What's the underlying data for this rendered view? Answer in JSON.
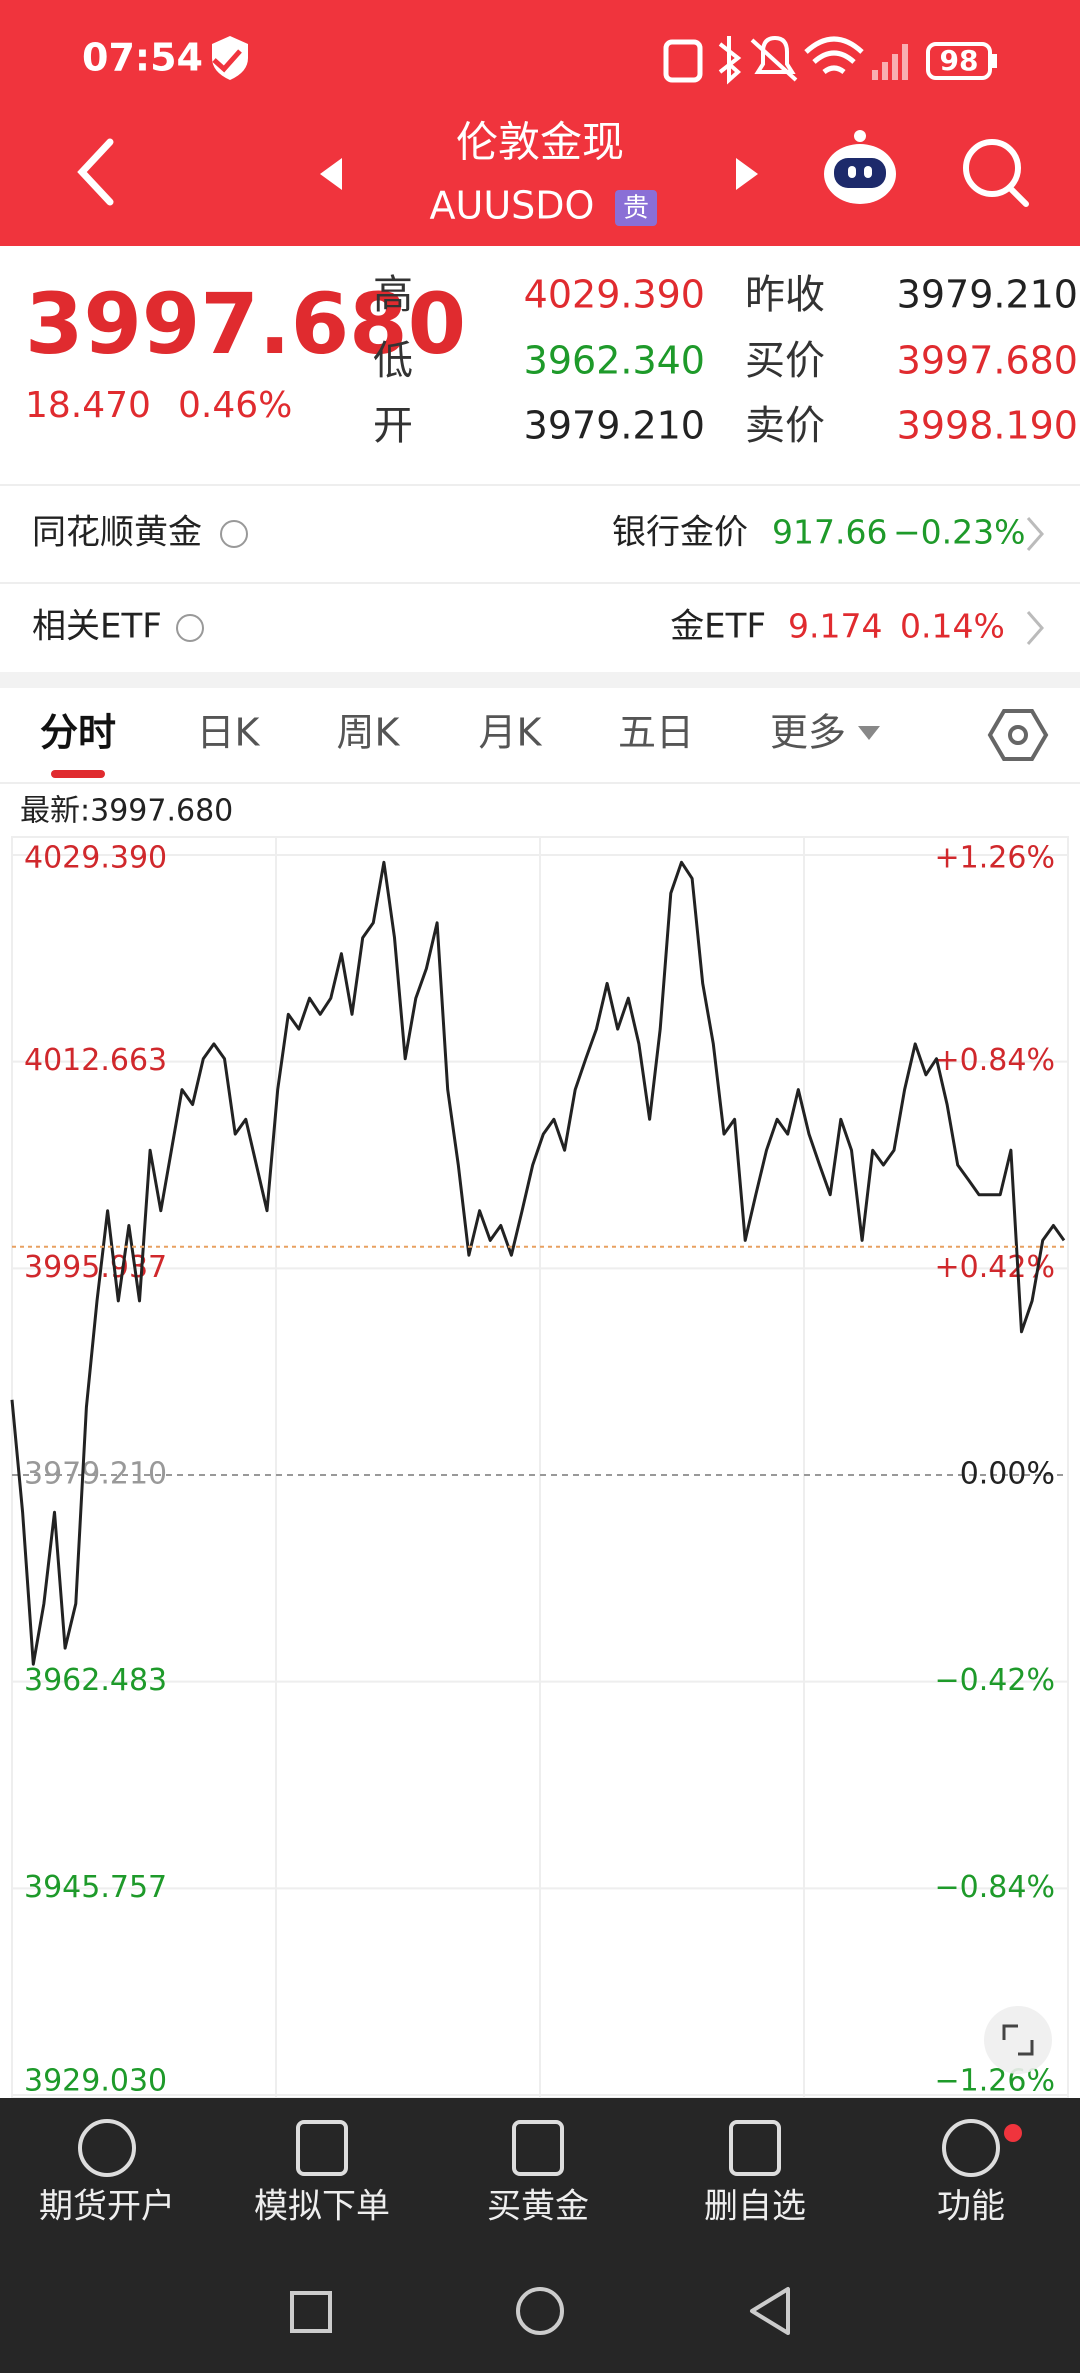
{
  "status_bar": {
    "time": "07:54",
    "battery": "98"
  },
  "header": {
    "title": "伦敦金现",
    "code": "AUUSDO",
    "badge": "贵"
  },
  "quote": {
    "price": "3997.680",
    "change": "18.470",
    "change_pct": "0.46%",
    "stats": [
      {
        "label": "高",
        "value": "4029.390"
      },
      {
        "label": "昨收",
        "value": "3979.210"
      },
      {
        "label": "低",
        "value": "3962.340"
      },
      {
        "label": "买价",
        "value": "3997.680"
      },
      {
        "label": "开",
        "value": "3979.210"
      },
      {
        "label": "卖价",
        "value": "3998.190"
      }
    ]
  },
  "related": [
    {
      "name": "同花顺黄金",
      "item": "银行金价",
      "price": "917.66",
      "change": "−0.23%"
    },
    {
      "name": "相关ETF",
      "item": "金ETF",
      "price": "9.174",
      "change": "0.14%"
    }
  ],
  "tabs": [
    "分时",
    "日K",
    "周K",
    "月K",
    "五日",
    "更多"
  ],
  "chart_data": {
    "type": "line",
    "color": "#222222",
    "latest": {
      "value": 3997.68,
      "label": "最新:3997.680"
    },
    "ylim": [
      3929.03,
      4029.39
    ],
    "yticks": [
      {
        "value": 4029.39,
        "label": "4029.390"
      },
      {
        "value": 4012.663,
        "label": "4012.663"
      },
      {
        "value": 3995.937,
        "label": "3995.937"
      },
      {
        "value": 3979.21,
        "label": "3979.210"
      },
      {
        "value": 3962.483,
        "label": "3962.483"
      },
      {
        "value": 3945.757,
        "label": "3945.757"
      },
      {
        "value": 3929.03,
        "label": "3929.030"
      }
    ],
    "y2lim": [
      -1.26,
      1.26
    ],
    "y2ticks": [
      {
        "value": 1.26,
        "label": "+1.26%"
      },
      {
        "value": 0.84,
        "label": "+0.84%"
      },
      {
        "value": 0.42,
        "label": "+0.42%"
      },
      {
        "value": 0,
        "label": "0.00%"
      },
      {
        "value": -0.42,
        "label": "−0.42%"
      },
      {
        "value": -0.84,
        "label": "−0.84%"
      },
      {
        "value": -1.26,
        "label": "−1.26%"
      }
    ],
    "grid": true,
    "values": [
      3985.3,
      3976.2,
      3963.9,
      3968.8,
      3976.2,
      3965.2,
      3968.8,
      3984.7,
      3993.3,
      4000.6,
      3993.3,
      3999.4,
      3993.3,
      4005.5,
      4000.6,
      4005.5,
      4010.4,
      4009.2,
      4012.9,
      4014.1,
      4012.9,
      4006.8,
      4008.0,
      4004.3,
      4000.6,
      4010.4,
      4016.5,
      4015.3,
      4017.8,
      4016.5,
      4017.8,
      4021.4,
      4016.5,
      4022.7,
      4023.9,
      4028.8,
      4022.7,
      4012.9,
      4017.8,
      4020.2,
      4023.9,
      4010.4,
      4004.3,
      3997.0,
      4000.6,
      3998.2,
      3999.4,
      3997.0,
      4000.6,
      4004.3,
      4006.8,
      4008.0,
      4005.5,
      4010.4,
      4012.9,
      4015.3,
      4019.0,
      4015.3,
      4017.8,
      4014.1,
      4008.0,
      4015.3,
      4026.3,
      4028.8,
      4027.5,
      4019.0,
      4014.1,
      4006.8,
      4008.0,
      3998.2,
      4001.9,
      4005.5,
      4008.0,
      4006.8,
      4010.4,
      4006.8,
      4004.3,
      4001.9,
      4008.0,
      4005.5,
      3998.2,
      4005.5,
      4004.3,
      4005.5,
      4010.4,
      4014.1,
      4011.6,
      4012.9,
      4009.2,
      4004.3,
      4003.1,
      4001.9,
      4001.9,
      4001.9,
      4005.5,
      3990.8,
      3993.3,
      3998.2,
      3999.4,
      3998.2
    ]
  },
  "toolbar": [
    "期货开户",
    "模拟下单",
    "买黄金",
    "删自选",
    "功能"
  ]
}
